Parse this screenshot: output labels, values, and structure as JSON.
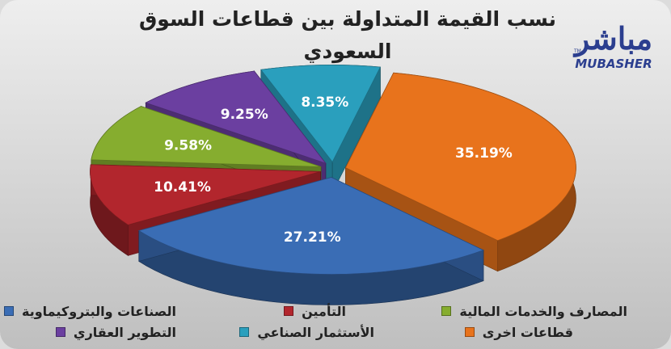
{
  "chart_data": {
    "type": "pie",
    "title": "نسب القيمة المتداولة بين قطاعات السوق السعودي",
    "slices": [
      {
        "label": "قطاعات اخرى",
        "value": 35.19,
        "value_label": "35.19%",
        "color": "#e8731c"
      },
      {
        "label": "الصناعات والبتروكيماوية",
        "value": 27.21,
        "value_label": "27.21%",
        "color": "#3a6db5"
      },
      {
        "label": "التأمين",
        "value": 10.41,
        "value_label": "10.41%",
        "color": "#b2262d"
      },
      {
        "label": "المصارف والخدمات المالية",
        "value": 9.58,
        "value_label": "9.58%",
        "color": "#86ad2f"
      },
      {
        "label": "التطوير العقاري",
        "value": 9.25,
        "value_label": "9.25%",
        "color": "#6b3fa0"
      },
      {
        "label": "الأستثمار الصناعي",
        "value": 8.35,
        "value_label": "8.35%",
        "color": "#2a9fbd"
      }
    ]
  },
  "logo": {
    "arabic": "مباشر",
    "english": "MUBASHER",
    "tm": "TM"
  },
  "legend": {
    "row1": [
      "الصناعات والبتروكيماوية",
      "التأمين",
      "المصارف والخدمات المالية"
    ],
    "row2": [
      "التطوير العقاري",
      "الأستثمار الصناعي",
      "قطاعات اخرى"
    ]
  }
}
